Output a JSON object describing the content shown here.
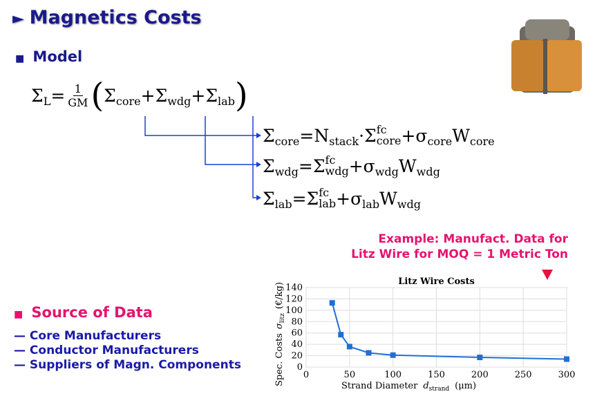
{
  "header": {
    "title": "Magnetics Costs"
  },
  "model": {
    "heading": "Model",
    "equations": [
      [
        {
          "b": "Σ",
          "sub": "L"
        },
        " = ",
        {
          "num": "1",
          "den": "GM"
        },
        "(",
        {
          "b": "Σ",
          "sub": "core"
        },
        " + ",
        {
          "b": "Σ",
          "sub": "wdg"
        },
        " + ",
        {
          "b": "Σ",
          "sub": "lab"
        },
        ")"
      ],
      [
        {
          "b": "Σ",
          "sub": "core"
        },
        " = ",
        {
          "b": "N",
          "sub": "stack"
        },
        " · ",
        {
          "b": "Σ",
          "sup": "fc",
          "sub": "core"
        },
        " + ",
        {
          "b": "σ",
          "sub": "core"
        },
        {
          "b": "W",
          "sub": "core"
        }
      ],
      [
        {
          "b": "Σ",
          "sub": "wdg"
        },
        " = ",
        {
          "b": "Σ",
          "sup": "fc",
          "sub": "wdg"
        },
        " + ",
        {
          "b": "σ",
          "sub": "wdg"
        },
        {
          "b": "W",
          "sub": "wdg"
        }
      ],
      [
        {
          "b": "Σ",
          "sub": "lab"
        },
        " = ",
        {
          "b": "Σ",
          "sup": "fc",
          "sub": "lab"
        },
        " + ",
        {
          "b": "σ",
          "sub": "lab"
        },
        {
          "b": "W",
          "sub": "wdg"
        }
      ]
    ]
  },
  "source": {
    "heading": "Source of Data",
    "items": [
      "Core Manufacturers",
      "Conductor Manufacturers",
      "Suppliers of Magn. Components"
    ]
  },
  "annotation": [
    "Example: Manufact. Data for",
    "Litz Wire for MOQ = 1 Metric Ton"
  ],
  "chart_data": {
    "type": "line",
    "title": "Litz Wire Costs",
    "x_label": [
      "Strand Diameter",
      "d",
      "strand",
      "(μm)"
    ],
    "y_label": [
      "Spec. Costs",
      "σ",
      "litz",
      "(€/kg)"
    ],
    "x": [
      30,
      40,
      50,
      72,
      100,
      200,
      300
    ],
    "series": [
      {
        "color": "#1f6fd6",
        "values": [
          113,
          57,
          36,
          25,
          21,
          17,
          14
        ]
      }
    ],
    "xlim": [
      0,
      300
    ],
    "xticks": [
      0,
      50,
      100,
      150,
      200,
      250,
      300
    ],
    "ylim": [
      0,
      140
    ],
    "yticks": [
      0,
      20,
      40,
      60,
      80,
      100,
      120,
      140
    ],
    "grid": true
  }
}
